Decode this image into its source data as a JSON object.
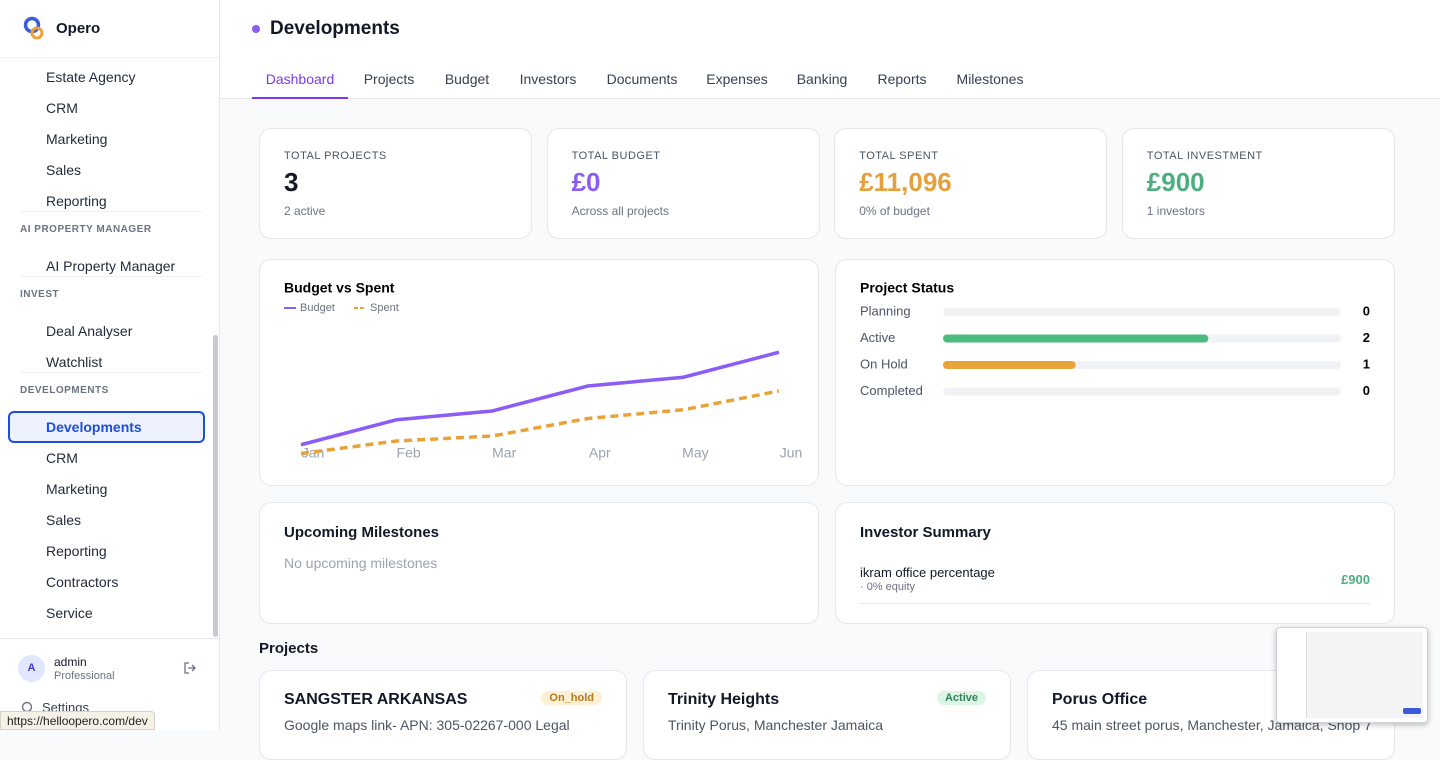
{
  "app": {
    "name": "Opero"
  },
  "sidebar": {
    "groups": [
      {
        "items": [
          "Estate Agency",
          "CRM",
          "Marketing",
          "Sales",
          "Reporting"
        ]
      },
      {
        "heading": "AI PROPERTY MANAGER",
        "items": [
          "AI Property Manager"
        ]
      },
      {
        "heading": "INVEST",
        "items": [
          "Deal Analyser",
          "Watchlist"
        ]
      },
      {
        "heading": "DEVELOPMENTS",
        "items": [
          "Developments",
          "CRM",
          "Marketing",
          "Sales",
          "Reporting",
          "Contractors",
          "Service"
        ],
        "active": 0
      }
    ]
  },
  "user": {
    "initial": "A",
    "name": "admin",
    "plan": "Professional"
  },
  "settings": "Settings",
  "status_url": "https://helloopero.com/dev",
  "page": {
    "title": "Developments",
    "tabs": [
      "Dashboard",
      "Projects",
      "Budget",
      "Investors",
      "Documents",
      "Expenses",
      "Banking",
      "Reports",
      "Milestones"
    ],
    "active_tab": 0
  },
  "stats": [
    {
      "label": "TOTAL PROJECTS",
      "value": "3",
      "note": "2 active",
      "color": "#111827"
    },
    {
      "label": "TOTAL BUDGET",
      "value": "£0",
      "note": "Across all projects",
      "color": "#8b5cf6"
    },
    {
      "label": "TOTAL SPENT",
      "value": "£11,096",
      "note": "0% of budget",
      "color": "#e5a03b"
    },
    {
      "label": "TOTAL INVESTMENT",
      "value": "£900",
      "note": "1 investors",
      "color": "#4caf7d"
    }
  ],
  "chart_data": [
    {
      "type": "line",
      "title": "Budget vs Spent",
      "categories": [
        "Jan",
        "Feb",
        "Mar",
        "Apr",
        "May",
        "Jun"
      ],
      "series": [
        {
          "name": "Budget",
          "color": "#8b5cf6",
          "values": [
            9,
            29,
            36,
            56,
            63,
            83
          ]
        },
        {
          "name": "Spent",
          "color": "#e8a23a",
          "dashed": true,
          "values": [
            2,
            12,
            16,
            30,
            37,
            52
          ]
        }
      ],
      "ylim": [
        0,
        100
      ]
    },
    {
      "type": "bar",
      "title": "Project Status",
      "categories": [
        "Planning",
        "Active",
        "On Hold",
        "Completed"
      ],
      "values": [
        0,
        2,
        1,
        0
      ],
      "colors": [
        "#8b5cf6",
        "#4cbb7f",
        "#e8a33a",
        "#6b7280"
      ],
      "xlim": [
        0,
        3
      ]
    }
  ],
  "milestones": {
    "title": "Upcoming Milestones",
    "empty": "No upcoming milestones"
  },
  "investors": {
    "title": "Investor Summary",
    "rows": [
      {
        "name": "ikram office percentage",
        "detail": "· 0% equity",
        "amount": "£900"
      }
    ]
  },
  "projects": {
    "title": "Projects",
    "cards": [
      {
        "name": "SANGSTER ARKANSAS",
        "status": "On_hold",
        "status_color": "#b7791f",
        "status_bg": "#fdf0d5",
        "description": "Google maps link- APN: 305-02267-000 Legal"
      },
      {
        "name": "Trinity Heights",
        "status": "Active",
        "status_color": "#2f855a",
        "status_bg": "#dcf5e6",
        "description": "Trinity Porus, Manchester Jamaica"
      },
      {
        "name": "Porus Office",
        "description": "45 main street porus, Manchester, Jamaica, Shop 7"
      }
    ]
  }
}
